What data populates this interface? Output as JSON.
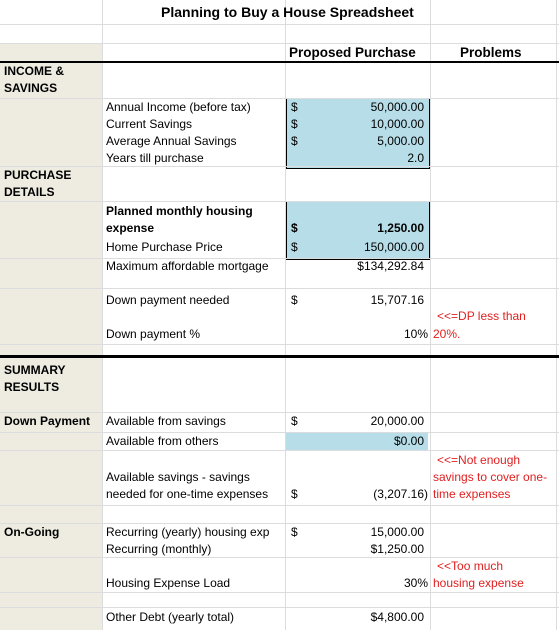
{
  "title": "Planning to Buy a House Spreadsheet",
  "headers": {
    "proposed": "Proposed Purchase",
    "problems": "Problems"
  },
  "sections": {
    "income_1": "INCOME &",
    "income_2": "SAVINGS",
    "purchase_1": "PURCHASE",
    "purchase_2": "DETAILS",
    "summary_1": "SUMMARY",
    "summary_2": "RESULTS",
    "down_payment": "Down Payment",
    "ongoing": "On-Going"
  },
  "rows": {
    "annual_income": {
      "label": "Annual Income (before tax)",
      "cur": "$",
      "value": "50,000.00"
    },
    "current_savings": {
      "label": "Current Savings",
      "cur": "$",
      "value": "10,000.00"
    },
    "avg_savings": {
      "label": "Average Annual Savings",
      "cur": "$",
      "value": "5,000.00"
    },
    "years": {
      "label": "Years till purchase",
      "value": "2.0"
    },
    "housing_exp_1": "Planned monthly housing",
    "housing_exp_2": "expense",
    "housing_exp": {
      "cur": "$",
      "value": "1,250.00"
    },
    "home_price": {
      "label": "Home Purchase Price",
      "cur": "$",
      "value": "150,000.00"
    },
    "max_mortgage": {
      "label": "Maximum affordable mortgage",
      "value": "$134,292.84"
    },
    "dp_needed": {
      "label": "Down payment needed",
      "cur": "$",
      "value": "15,707.16"
    },
    "dp_pct": {
      "label": "Down payment %",
      "value": "10%"
    },
    "avail_savings": {
      "label": "Available from savings",
      "cur": "$",
      "value": "20,000.00"
    },
    "avail_others": {
      "label": "Available from others",
      "value": "$0.00"
    },
    "avail_minus_1": "Available savings - savings",
    "avail_minus_2": "needed for one-time expenses",
    "avail_minus": {
      "cur": "$",
      "value": "(3,207.16)"
    },
    "recurring_yearly": {
      "label": "Recurring (yearly) housing exp",
      "cur": "$",
      "value": "15,000.00"
    },
    "recurring_monthly": {
      "label": "Recurring (monthly)",
      "value": "$1,250.00"
    },
    "expense_load": {
      "label": "Housing Expense Load",
      "value": "30%"
    },
    "other_debt": {
      "label": "Other Debt (yearly total)",
      "value": "$4,800.00"
    }
  },
  "problems": {
    "dp_1": "<<=DP less than",
    "dp_2": "20%.",
    "savings_1": "<<=Not enough",
    "savings_2": "savings to cover one-",
    "savings_3": "time expenses",
    "housing_1": "<<Too much",
    "housing_2": "housing expense"
  },
  "colors": {
    "input_fill": "#b7dde8",
    "label_column": "#eeece1",
    "warning": "#e02020"
  }
}
